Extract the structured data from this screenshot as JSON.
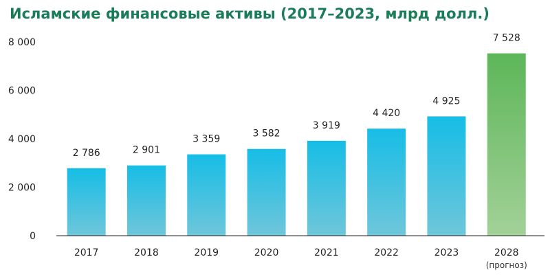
{
  "chart_data": {
    "type": "bar",
    "title": "Исламские финансовые активы (2017–2023, млрд долл.)",
    "categories": [
      "2017",
      "2018",
      "2019",
      "2020",
      "2021",
      "2022",
      "2023",
      "2028"
    ],
    "category_notes": [
      "",
      "",
      "",
      "",
      "",
      "",
      "",
      "(прогноз)"
    ],
    "values": [
      2786,
      2901,
      3359,
      3582,
      3919,
      4420,
      4925,
      7528
    ],
    "value_labels": [
      "2 786",
      "2 901",
      "3 359",
      "3 582",
      "3 919",
      "4 420",
      "4 925",
      "7 528"
    ],
    "ytick_values": [
      0,
      2000,
      4000,
      6000,
      8000
    ],
    "ytick_labels": [
      "0",
      "2 000",
      "4 000",
      "6 000",
      "8 000"
    ],
    "ylim": [
      0,
      8000
    ],
    "xlabel": "",
    "ylabel": "",
    "grid": false,
    "colors": {
      "actual_top": "#16bde6",
      "actual_bottom": "#6fc6da",
      "forecast_top": "#5db659",
      "forecast_bottom": "#a3d198",
      "axis": "#222222",
      "title": "#1b7c59"
    }
  }
}
